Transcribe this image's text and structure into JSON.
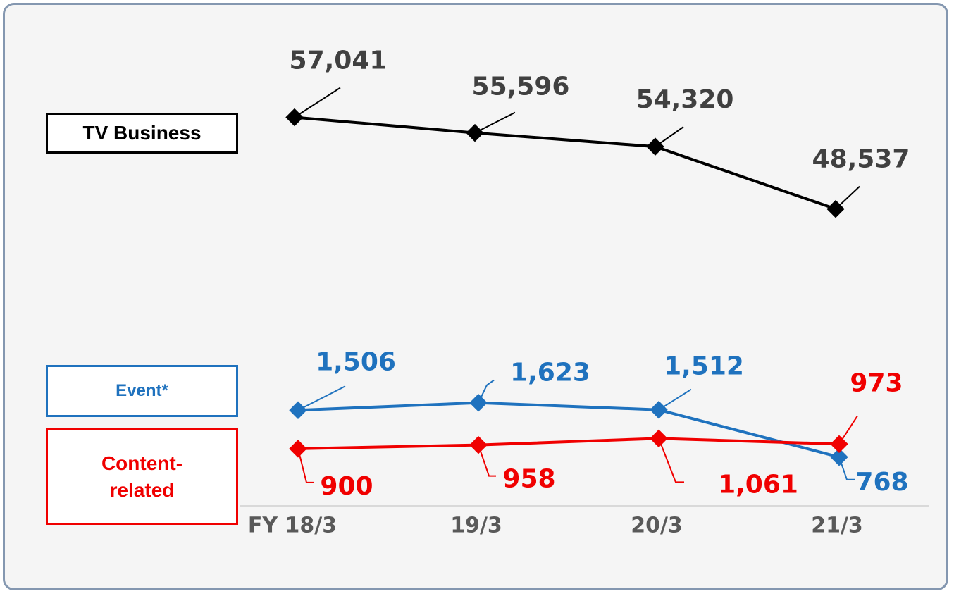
{
  "chart_data": {
    "type": "line",
    "categories": [
      "FY 18/3",
      "19/3",
      "20/3",
      "21/3"
    ],
    "ylim": [
      0,
      7300
    ],
    "y2lim": [
      21000,
      64000
    ],
    "series": [
      {
        "name": "TV Business",
        "color": "#000000",
        "axis": "y2",
        "values": [
          57041,
          55596,
          54320,
          48537
        ],
        "value_labels": [
          "57,041",
          "55,596",
          "54,320",
          "48,537"
        ]
      },
      {
        "name": "Event*",
        "color": "#1f72be",
        "values": [
          1506,
          1623,
          1512,
          768
        ],
        "value_labels": [
          "1,506",
          "1,623",
          "1,512",
          "768"
        ]
      },
      {
        "name": "Content-related",
        "color": "#f00000",
        "values": [
          900,
          958,
          1061,
          973
        ],
        "value_labels": [
          "900",
          "958",
          "1,061",
          "973"
        ]
      }
    ]
  }
}
